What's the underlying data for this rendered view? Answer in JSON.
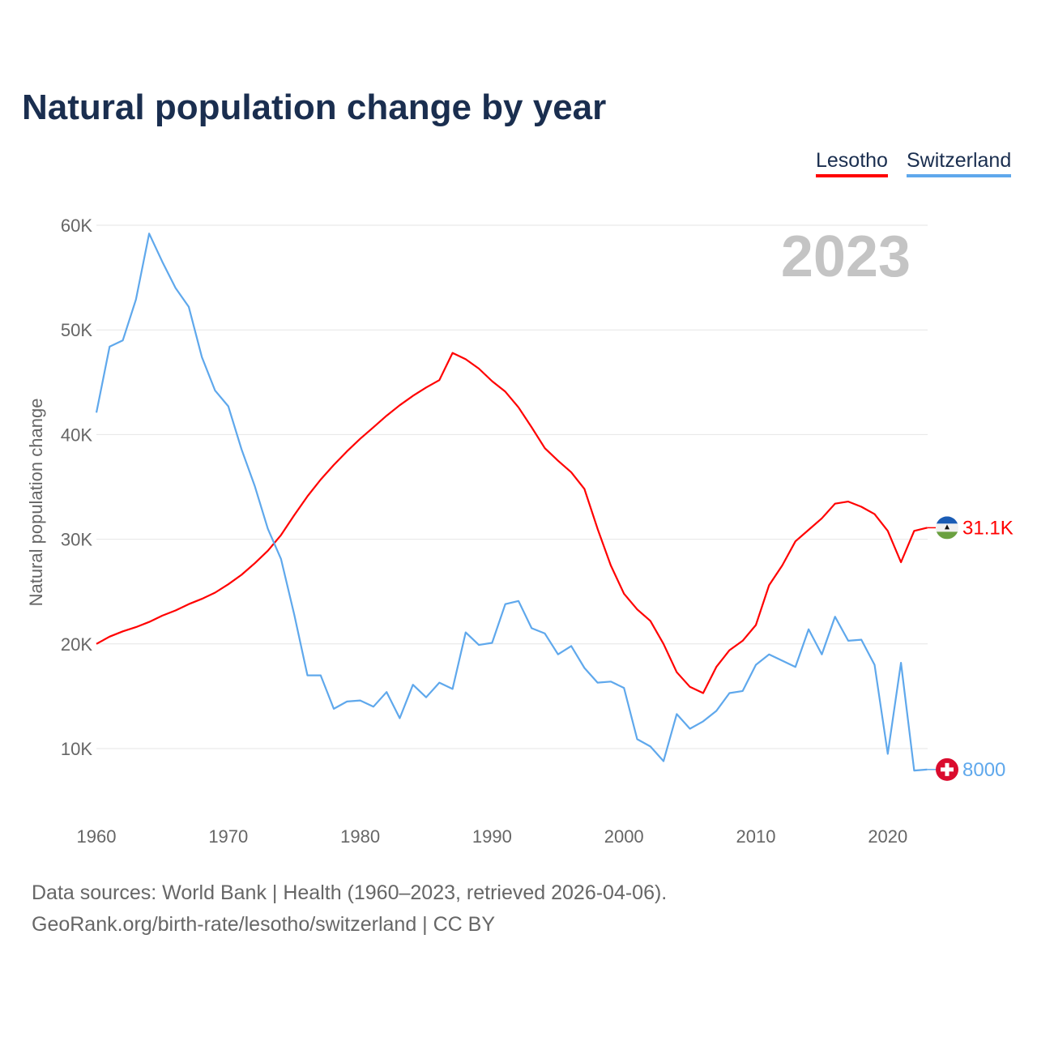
{
  "chart_data": {
    "type": "line",
    "title": "Natural population change by year",
    "xlabel": "",
    "ylabel": "Natural population change",
    "xlim": [
      1960,
      2023
    ],
    "ylim": [
      0,
      60000
    ],
    "yticks": [
      10000,
      20000,
      30000,
      40000,
      50000,
      60000
    ],
    "ytick_labels": [
      "10K",
      "20K",
      "30K",
      "40K",
      "50K",
      "60K"
    ],
    "xticks": [
      1960,
      1970,
      1980,
      1990,
      2000,
      2010,
      2020
    ],
    "xtick_labels": [
      "1960",
      "1970",
      "1980",
      "1990",
      "2000",
      "2010",
      "2020"
    ],
    "grid": true,
    "legend_placement": "top-right",
    "year_label": "2023",
    "series": [
      {
        "name": "Lesotho",
        "color": "#ff0000",
        "end_label": "31.1K",
        "flag_icon": "lesotho-flag-icon",
        "start_year": 1960,
        "values": [
          20000,
          20700,
          21200,
          21600,
          22100,
          22700,
          23200,
          23800,
          24300,
          24900,
          25700,
          26600,
          27700,
          28900,
          30400,
          32300,
          34100,
          35700,
          37100,
          38400,
          39600,
          40700,
          41800,
          42800,
          43700,
          44500,
          45200,
          47800,
          47200,
          46300,
          45100,
          44100,
          42600,
          40700,
          38700,
          37500,
          36400,
          34800,
          31000,
          27500,
          24800,
          23300,
          22200,
          20000,
          17300,
          15900,
          15300,
          17800,
          19400,
          20300,
          21800,
          25600,
          27500,
          29800,
          30900,
          32000,
          33400,
          33600,
          33100,
          32400,
          30800,
          27800,
          30800,
          31100
        ]
      },
      {
        "name": "Switzerland",
        "color": "#5fa8ec",
        "end_label": "8000",
        "flag_icon": "switzerland-flag-icon",
        "start_year": 1960,
        "values": [
          42100,
          48400,
          49000,
          52900,
          59200,
          56500,
          54000,
          52200,
          47400,
          44200,
          42700,
          38600,
          35100,
          31000,
          28100,
          22800,
          17000,
          17000,
          13800,
          14500,
          14600,
          14000,
          15400,
          12900,
          16100,
          14900,
          16300,
          15700,
          21100,
          19900,
          20100,
          23800,
          24100,
          21500,
          21000,
          19000,
          19800,
          17700,
          16300,
          16400,
          15800,
          10900,
          10200,
          8800,
          13300,
          11900,
          12600,
          13600,
          15300,
          15500,
          18000,
          19000,
          18400,
          17800,
          21400,
          19000,
          22600,
          20300,
          20400,
          18000,
          9500,
          18200,
          7900,
          8000
        ]
      }
    ]
  },
  "footer": {
    "sources": "Data sources: World Bank | Health (1960–2023, retrieved 2026-04-06).",
    "link": "GeoRank.org/birth-rate/lesotho/switzerland | CC BY"
  }
}
